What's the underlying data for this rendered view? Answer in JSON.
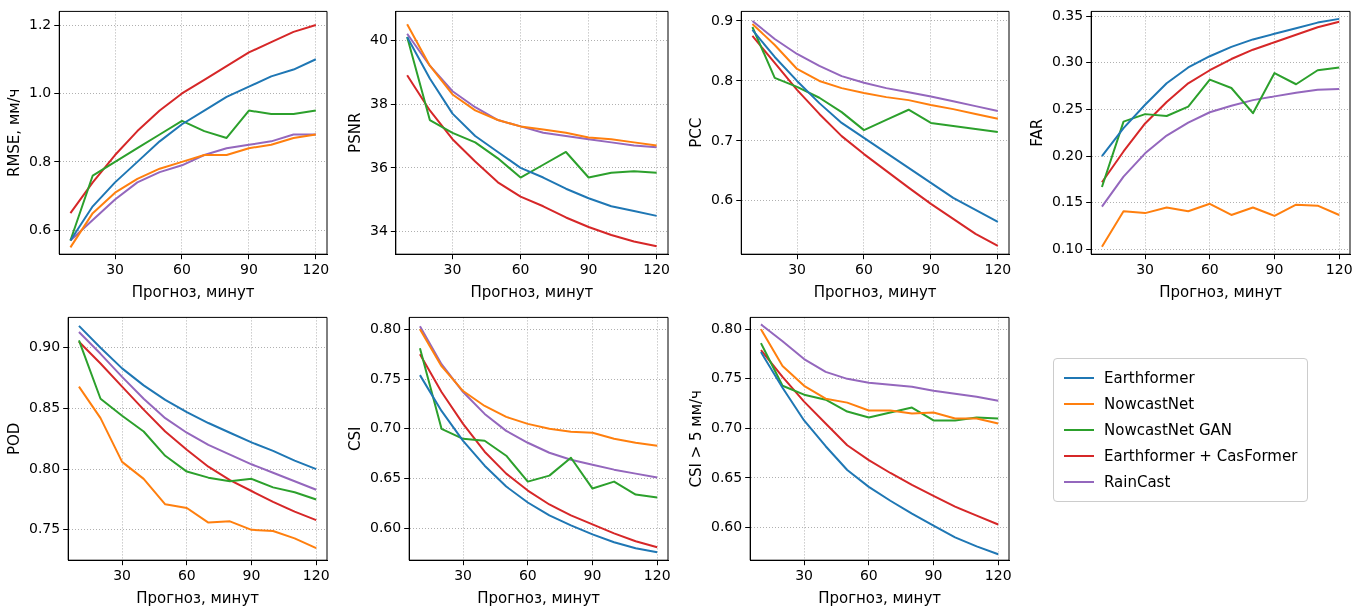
{
  "chart_data": [
    {
      "type": "line",
      "xlabel": "Прогноз, минут",
      "ylabel": "RMSE, мм/ч",
      "x": [
        10,
        20,
        30,
        40,
        50,
        60,
        70,
        80,
        90,
        100,
        110,
        120
      ],
      "xlim": [
        5,
        125
      ],
      "xticks": [
        30,
        60,
        90,
        120
      ],
      "ylim": [
        0.53,
        1.24
      ],
      "yticks": [
        0.6,
        0.8,
        {
          "value": 1.0,
          "label": "1.0"
        },
        1.2
      ],
      "grid": true,
      "legend": false,
      "series": [
        {
          "color": "#1f77b4",
          "values": [
            0.57,
            0.67,
            0.74,
            0.8,
            0.86,
            0.91,
            0.95,
            0.99,
            1.02,
            1.05,
            1.07,
            1.1
          ]
        },
        {
          "color": "#ff7f0e",
          "values": [
            0.55,
            0.65,
            0.71,
            0.75,
            0.78,
            0.8,
            0.82,
            0.82,
            0.84,
            0.85,
            0.87,
            0.88
          ]
        },
        {
          "color": "#2ca02c",
          "values": [
            0.57,
            0.76,
            0.8,
            0.84,
            0.88,
            0.92,
            0.89,
            0.87,
            0.95,
            0.94,
            0.94,
            0.95
          ]
        },
        {
          "color": "#d62728",
          "values": [
            0.65,
            0.74,
            0.82,
            0.89,
            0.95,
            1.0,
            1.04,
            1.08,
            1.12,
            1.15,
            1.18,
            1.2
          ]
        },
        {
          "color": "#9467bd",
          "values": [
            0.57,
            0.63,
            0.69,
            0.74,
            0.77,
            0.79,
            0.82,
            0.84,
            0.85,
            0.86,
            0.88,
            0.88
          ]
        }
      ]
    },
    {
      "type": "line",
      "xlabel": "Прогноз, минут",
      "ylabel": "PSNR",
      "x": [
        10,
        20,
        30,
        40,
        50,
        60,
        70,
        80,
        90,
        100,
        110,
        120
      ],
      "xlim": [
        5,
        125
      ],
      "xticks": [
        30,
        60,
        90,
        120
      ],
      "ylim": [
        33.3,
        40.9
      ],
      "yticks": [
        34,
        36,
        38,
        40
      ],
      "grid": true,
      "legend": false,
      "series": [
        {
          "color": "#1f77b4",
          "values": [
            40.1,
            38.8,
            37.7,
            37.0,
            36.5,
            36.0,
            35.7,
            35.35,
            35.05,
            34.8,
            34.65,
            34.5
          ]
        },
        {
          "color": "#ff7f0e",
          "values": [
            40.5,
            39.2,
            38.3,
            37.8,
            37.5,
            37.3,
            37.2,
            37.1,
            36.95,
            36.9,
            36.8,
            36.7
          ]
        },
        {
          "color": "#2ca02c",
          "values": [
            40.1,
            37.5,
            37.1,
            36.8,
            36.3,
            35.7,
            36.1,
            36.5,
            35.7,
            35.85,
            35.9,
            35.85
          ]
        },
        {
          "color": "#d62728",
          "values": [
            38.9,
            37.8,
            36.9,
            36.2,
            35.55,
            35.1,
            34.8,
            34.45,
            34.15,
            33.9,
            33.7,
            33.55
          ]
        },
        {
          "color": "#9467bd",
          "values": [
            40.2,
            39.2,
            38.4,
            37.9,
            37.5,
            37.3,
            37.1,
            37.0,
            36.9,
            36.8,
            36.7,
            36.65
          ]
        }
      ]
    },
    {
      "type": "line",
      "xlabel": "Прогноз, минут",
      "ylabel": "PCC",
      "x": [
        10,
        20,
        30,
        40,
        50,
        60,
        70,
        80,
        90,
        100,
        110,
        120
      ],
      "xlim": [
        5,
        125
      ],
      "xticks": [
        30,
        60,
        90,
        120
      ],
      "ylim": [
        0.511,
        0.916
      ],
      "yticks": [
        0.6,
        0.7,
        0.8,
        0.9
      ],
      "grid": true,
      "legend": false,
      "series": [
        {
          "color": "#1f77b4",
          "values": [
            0.885,
            0.84,
            0.8,
            0.763,
            0.73,
            0.705,
            0.68,
            0.655,
            0.63,
            0.605,
            0.585,
            0.565
          ]
        },
        {
          "color": "#ff7f0e",
          "values": [
            0.895,
            0.86,
            0.82,
            0.8,
            0.788,
            0.78,
            0.773,
            0.768,
            0.76,
            0.753,
            0.745,
            0.737
          ]
        },
        {
          "color": "#2ca02c",
          "values": [
            0.89,
            0.805,
            0.79,
            0.772,
            0.748,
            0.718,
            0.735,
            0.752,
            0.73,
            0.725,
            0.72,
            0.715
          ]
        },
        {
          "color": "#d62728",
          "values": [
            0.875,
            0.83,
            0.785,
            0.745,
            0.708,
            0.678,
            0.65,
            0.622,
            0.595,
            0.57,
            0.545,
            0.525
          ]
        },
        {
          "color": "#9467bd",
          "values": [
            0.9,
            0.87,
            0.845,
            0.825,
            0.808,
            0.797,
            0.788,
            0.781,
            0.774,
            0.766,
            0.758,
            0.75
          ]
        }
      ]
    },
    {
      "type": "line",
      "xlabel": "Прогноз, минут",
      "ylabel": "FAR",
      "x": [
        10,
        20,
        30,
        40,
        50,
        60,
        70,
        80,
        90,
        100,
        110,
        120
      ],
      "xlim": [
        5,
        125
      ],
      "xticks": [
        30,
        60,
        90,
        120
      ],
      "ylim": [
        0.095,
        0.355
      ],
      "yticks": [
        {
          "value": 0.1,
          "label": "0.10"
        },
        {
          "value": 0.15,
          "label": "0.15"
        },
        {
          "value": 0.2,
          "label": "0.20"
        },
        {
          "value": 0.25,
          "label": "0.25"
        },
        {
          "value": 0.3,
          "label": "0.30"
        },
        {
          "value": 0.35,
          "label": "0.35"
        }
      ],
      "grid": true,
      "legend": false,
      "series": [
        {
          "color": "#1f77b4",
          "values": [
            0.2,
            0.23,
            0.255,
            0.278,
            0.295,
            0.307,
            0.317,
            0.325,
            0.331,
            0.337,
            0.343,
            0.347
          ]
        },
        {
          "color": "#ff7f0e",
          "values": [
            0.103,
            0.141,
            0.139,
            0.145,
            0.141,
            0.149,
            0.137,
            0.145,
            0.136,
            0.148,
            0.147,
            0.137
          ]
        },
        {
          "color": "#2ca02c",
          "values": [
            0.167,
            0.237,
            0.245,
            0.243,
            0.253,
            0.282,
            0.273,
            0.246,
            0.289,
            0.277,
            0.292,
            0.295
          ]
        },
        {
          "color": "#d62728",
          "values": [
            0.172,
            0.205,
            0.235,
            0.258,
            0.278,
            0.292,
            0.304,
            0.314,
            0.322,
            0.33,
            0.338,
            0.344
          ]
        },
        {
          "color": "#9467bd",
          "values": [
            0.146,
            0.178,
            0.203,
            0.222,
            0.236,
            0.247,
            0.254,
            0.26,
            0.264,
            0.268,
            0.271,
            0.272
          ]
        }
      ]
    },
    {
      "type": "line",
      "xlabel": "Прогноз, минут",
      "ylabel": "POD",
      "x": [
        10,
        20,
        30,
        40,
        50,
        60,
        70,
        80,
        90,
        100,
        110,
        120
      ],
      "xlim": [
        5,
        125
      ],
      "xticks": [
        30,
        60,
        90,
        120
      ],
      "ylim": [
        0.725,
        0.925
      ],
      "yticks": [
        {
          "value": 0.75,
          "label": "0.75"
        },
        {
          "value": 0.8,
          "label": "0.80"
        },
        {
          "value": 0.85,
          "label": "0.85"
        },
        {
          "value": 0.9,
          "label": "0.90"
        }
      ],
      "grid": true,
      "legend": false,
      "series": [
        {
          "color": "#1f77b4",
          "values": [
            0.918,
            0.9,
            0.883,
            0.869,
            0.857,
            0.847,
            0.838,
            0.83,
            0.822,
            0.815,
            0.807,
            0.8
          ]
        },
        {
          "color": "#ff7f0e",
          "values": [
            0.868,
            0.842,
            0.806,
            0.792,
            0.771,
            0.768,
            0.756,
            0.757,
            0.75,
            0.749,
            0.743,
            0.735
          ]
        },
        {
          "color": "#2ca02c",
          "values": [
            0.906,
            0.858,
            0.844,
            0.831,
            0.811,
            0.798,
            0.793,
            0.79,
            0.792,
            0.785,
            0.781,
            0.775
          ]
        },
        {
          "color": "#d62728",
          "values": [
            0.905,
            0.887,
            0.868,
            0.849,
            0.831,
            0.816,
            0.802,
            0.791,
            0.782,
            0.773,
            0.765,
            0.758
          ]
        },
        {
          "color": "#9467bd",
          "values": [
            0.913,
            0.895,
            0.876,
            0.858,
            0.842,
            0.83,
            0.82,
            0.812,
            0.804,
            0.797,
            0.79,
            0.783
          ]
        }
      ]
    },
    {
      "type": "line",
      "xlabel": "Прогноз, минут",
      "ylabel": "CSI",
      "x": [
        10,
        20,
        30,
        40,
        50,
        60,
        70,
        80,
        90,
        100,
        110,
        120
      ],
      "xlim": [
        5,
        125
      ],
      "xticks": [
        30,
        60,
        90,
        120
      ],
      "ylim": [
        0.568,
        0.812
      ],
      "yticks": [
        {
          "value": 0.6,
          "label": "0.60"
        },
        {
          "value": 0.65,
          "label": "0.65"
        },
        {
          "value": 0.7,
          "label": "0.70"
        },
        {
          "value": 0.75,
          "label": "0.75"
        },
        {
          "value": 0.8,
          "label": "0.80"
        }
      ],
      "grid": true,
      "legend": false,
      "series": [
        {
          "color": "#1f77b4",
          "values": [
            0.754,
            0.718,
            0.688,
            0.663,
            0.642,
            0.626,
            0.613,
            0.603,
            0.594,
            0.586,
            0.58,
            0.576
          ]
        },
        {
          "color": "#ff7f0e",
          "values": [
            0.8,
            0.763,
            0.738,
            0.723,
            0.712,
            0.705,
            0.7,
            0.697,
            0.696,
            0.69,
            0.686,
            0.683
          ]
        },
        {
          "color": "#2ca02c",
          "values": [
            0.781,
            0.7,
            0.69,
            0.688,
            0.673,
            0.647,
            0.653,
            0.671,
            0.64,
            0.647,
            0.634,
            0.631
          ]
        },
        {
          "color": "#d62728",
          "values": [
            0.775,
            0.737,
            0.705,
            0.677,
            0.655,
            0.638,
            0.624,
            0.613,
            0.604,
            0.595,
            0.587,
            0.581
          ]
        },
        {
          "color": "#9467bd",
          "values": [
            0.803,
            0.765,
            0.737,
            0.715,
            0.698,
            0.686,
            0.676,
            0.669,
            0.664,
            0.659,
            0.655,
            0.651
          ]
        }
      ]
    },
    {
      "type": "line",
      "xlabel": "Прогноз, минут",
      "ylabel": "CSI > 5 мм/ч",
      "x": [
        10,
        20,
        30,
        40,
        50,
        60,
        70,
        80,
        90,
        100,
        110,
        120
      ],
      "xlim": [
        5,
        125
      ],
      "xticks": [
        30,
        60,
        90,
        120
      ],
      "ylim": [
        0.567,
        0.812
      ],
      "yticks": [
        {
          "value": 0.6,
          "label": "0.60"
        },
        {
          "value": 0.65,
          "label": "0.65"
        },
        {
          "value": 0.7,
          "label": "0.70"
        },
        {
          "value": 0.75,
          "label": "0.75"
        },
        {
          "value": 0.8,
          "label": "0.80"
        }
      ],
      "grid": true,
      "legend": "right",
      "series": [
        {
          "name": "Earthformer",
          "color": "#1f77b4",
          "values": [
            0.777,
            0.741,
            0.708,
            0.682,
            0.658,
            0.641,
            0.627,
            0.614,
            0.602,
            0.59,
            0.581,
            0.573
          ]
        },
        {
          "name": "NowcastNet",
          "color": "#ff7f0e",
          "values": [
            0.8,
            0.763,
            0.743,
            0.73,
            0.726,
            0.718,
            0.718,
            0.715,
            0.716,
            0.71,
            0.71,
            0.705
          ]
        },
        {
          "name": "NowcastNet GAN",
          "color": "#2ca02c",
          "values": [
            0.786,
            0.743,
            0.734,
            0.729,
            0.717,
            0.711,
            0.716,
            0.721,
            0.708,
            0.708,
            0.711,
            0.71
          ]
        },
        {
          "name": "Earthformer + CasFormer",
          "color": "#d62728",
          "values": [
            0.779,
            0.752,
            0.727,
            0.705,
            0.683,
            0.668,
            0.655,
            0.643,
            0.632,
            0.621,
            0.612,
            0.603
          ]
        },
        {
          "name": "RainCast",
          "color": "#9467bd",
          "values": [
            0.805,
            0.788,
            0.77,
            0.757,
            0.75,
            0.746,
            0.744,
            0.742,
            0.738,
            0.735,
            0.732,
            0.728
          ]
        }
      ]
    }
  ]
}
